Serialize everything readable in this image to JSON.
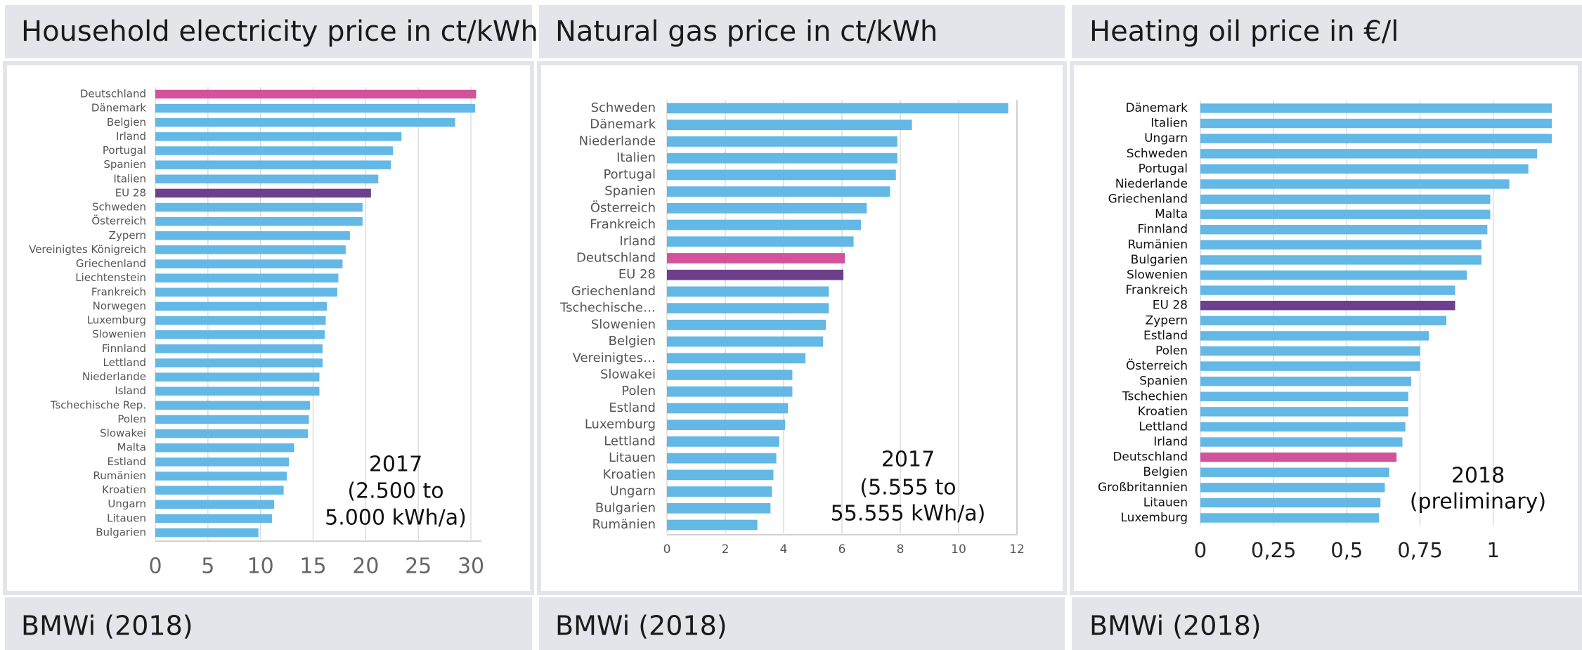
{
  "chart_data": [
    {
      "type": "hbar",
      "title": "Household electricity price in ct/kWh",
      "source": "BMWi (2018)",
      "annotation": [
        "2017",
        "(2.500 to",
        "5.000 kWh/a)"
      ],
      "categories": [
        "Deutschland",
        "Dänemark",
        "Belgien",
        "Irland",
        "Portugal",
        "Spanien",
        "Italien",
        "EU 28",
        "Schweden",
        "Österreich",
        "Zypern",
        "Vereinigtes Königreich",
        "Griechenland",
        "Liechtenstein",
        "Frankreich",
        "Norwegen",
        "Luxemburg",
        "Slowenien",
        "Finnland",
        "Lettland",
        "Niederlande",
        "Island",
        "Tschechische Rep.",
        "Polen",
        "Slowakei",
        "Malta",
        "Estland",
        "Rumänien",
        "Kroatien",
        "Ungarn",
        "Litauen",
        "Bulgarien"
      ],
      "values": [
        30.5,
        30.4,
        28.5,
        23.4,
        22.6,
        22.4,
        21.2,
        20.5,
        19.7,
        19.7,
        18.5,
        18.1,
        17.8,
        17.4,
        17.3,
        16.3,
        16.2,
        16.1,
        15.9,
        15.9,
        15.6,
        15.6,
        14.7,
        14.6,
        14.5,
        13.2,
        12.7,
        12.5,
        12.2,
        11.3,
        11.1,
        9.8
      ],
      "color": "#63b8e6",
      "highlight_colors": {
        "Deutschland": "#d1549b",
        "EU 28": "#6d3f8c"
      },
      "xlim": [
        0,
        31
      ],
      "xticks": [
        0,
        5,
        10,
        15,
        20,
        25,
        30
      ],
      "grid": true
    },
    {
      "type": "hbar",
      "title": "Natural gas price in ct/kWh",
      "source": "BMWi (2018)",
      "annotation": [
        "2017",
        "(5.555 to",
        "55.555 kWh/a)"
      ],
      "categories": [
        "Schweden",
        "Dänemark",
        "Niederlande",
        "Italien",
        "Portugal",
        "Spanien",
        "Österreich",
        "Frankreich",
        "Irland",
        "Deutschland",
        "EU 28",
        "Griechenland",
        "Tschechische…",
        "Slowenien",
        "Belgien",
        "Vereinigtes…",
        "Slowakei",
        "Polen",
        "Estland",
        "Luxemburg",
        "Lettland",
        "Litauen",
        "Kroatien",
        "Ungarn",
        "Bulgarien",
        "Rumänien"
      ],
      "values": [
        11.7,
        8.4,
        7.9,
        7.9,
        7.85,
        7.65,
        6.85,
        6.65,
        6.4,
        6.1,
        6.05,
        5.55,
        5.55,
        5.45,
        5.35,
        4.75,
        4.3,
        4.3,
        4.15,
        4.05,
        3.85,
        3.75,
        3.65,
        3.6,
        3.55,
        3.1
      ],
      "color": "#63b8e6",
      "highlight_colors": {
        "Deutschland": "#d1549b",
        "EU 28": "#6d3f8c"
      },
      "xlim": [
        0,
        12
      ],
      "xticks": [
        0,
        2,
        4,
        6,
        8,
        10,
        12
      ],
      "grid": true
    },
    {
      "type": "hbar",
      "title": "Heating oil price in €/l",
      "source": "BMWi (2018)",
      "annotation": [
        "2018",
        "(preliminary)"
      ],
      "categories": [
        "Dänemark",
        "Italien",
        "Ungarn",
        "Schweden",
        "Portugal",
        "Niederlande",
        "Griechenland",
        "Malta",
        "Finnland",
        "Rumänien",
        "Bulgarien",
        "Slowenien",
        "Frankreich",
        "EU 28",
        "Zypern",
        "Estland",
        "Polen",
        "Österreich",
        "Spanien",
        "Tschechien",
        "Kroatien",
        "Lettland",
        "Irland",
        "Deutschland",
        "Belgien",
        "Großbritannien",
        "Litauen",
        "Luxemburg"
      ],
      "values": [
        1.2,
        1.2,
        1.2,
        1.15,
        1.12,
        1.055,
        0.99,
        0.99,
        0.98,
        0.96,
        0.96,
        0.91,
        0.87,
        0.87,
        0.84,
        0.78,
        0.75,
        0.75,
        0.72,
        0.71,
        0.71,
        0.7,
        0.69,
        0.67,
        0.645,
        0.63,
        0.615,
        0.61
      ],
      "color": "#63b8e6",
      "highlight_colors": {
        "Deutschland": "#d1549b",
        "EU 28": "#6d3f8c"
      },
      "xlim": [
        0,
        1.2
      ],
      "xticks": [
        0,
        {
          "value": 0.25,
          "label": "0,25"
        },
        {
          "value": 0.5,
          "label": "0,5"
        },
        {
          "value": 0.75,
          "label": "0,75"
        },
        1
      ],
      "grid": true
    }
  ]
}
